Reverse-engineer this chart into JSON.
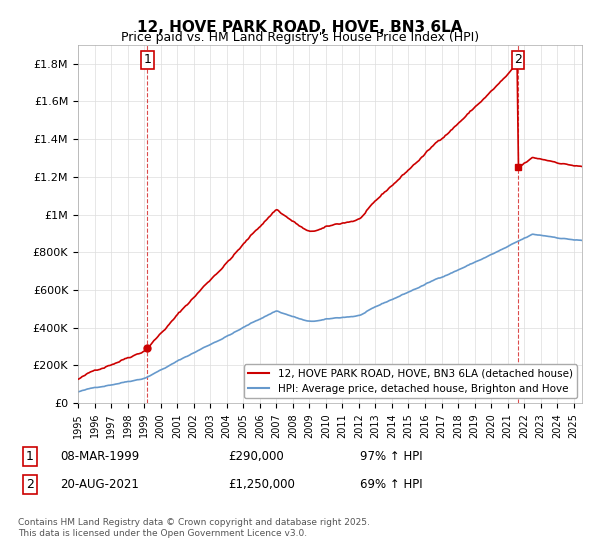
{
  "title": "12, HOVE PARK ROAD, HOVE, BN3 6LA",
  "subtitle": "Price paid vs. HM Land Registry's House Price Index (HPI)",
  "legend_line1": "12, HOVE PARK ROAD, HOVE, BN3 6LA (detached house)",
  "legend_line2": "HPI: Average price, detached house, Brighton and Hove",
  "annotation1_label": "1",
  "annotation1_date": "08-MAR-1999",
  "annotation1_price": "£290,000",
  "annotation1_hpi": "97% ↑ HPI",
  "annotation2_label": "2",
  "annotation2_date": "20-AUG-2021",
  "annotation2_price": "£1,250,000",
  "annotation2_hpi": "69% ↑ HPI",
  "footer": "Contains HM Land Registry data © Crown copyright and database right 2025.\nThis data is licensed under the Open Government Licence v3.0.",
  "red_color": "#cc0000",
  "blue_color": "#6699cc",
  "dashed_color": "#cc0000",
  "bg_color": "#ffffff",
  "grid_color": "#dddddd",
  "ylim_min": 0,
  "ylim_max": 1900000,
  "sale1_year": 1999.19,
  "sale1_value": 290000,
  "sale2_year": 2021.63,
  "sale2_value": 1250000,
  "yticks": [
    0,
    200000,
    400000,
    600000,
    800000,
    1000000,
    1200000,
    1400000,
    1600000,
    1800000
  ],
  "ytick_labels": [
    "£0",
    "£200K",
    "£400K",
    "£600K",
    "£800K",
    "£1M",
    "£1.2M",
    "£1.4M",
    "£1.6M",
    "£1.8M"
  ]
}
